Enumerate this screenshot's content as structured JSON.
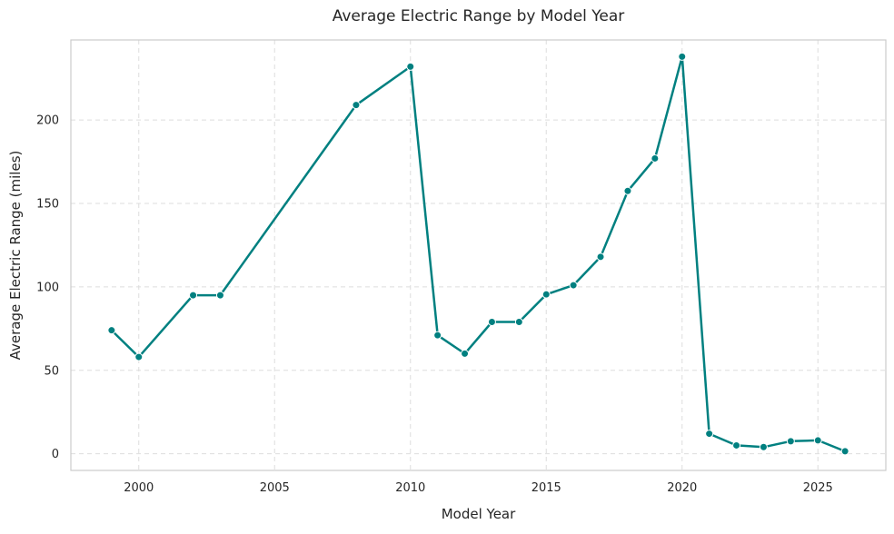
{
  "chart_data": {
    "type": "line",
    "title": "Average Electric Range by Model Year",
    "xlabel": "Model Year",
    "ylabel": "Average Electric Range (miles)",
    "xlim": [
      1997.5,
      2027.5
    ],
    "ylim": [
      -10,
      248
    ],
    "grid": true,
    "x_ticks": [
      2000,
      2005,
      2010,
      2015,
      2020,
      2025
    ],
    "y_ticks": [
      0,
      50,
      100,
      150,
      200
    ],
    "series": [
      {
        "color": "#008080",
        "x": [
          1999,
          2000,
          2002,
          2003,
          2008,
          2010,
          2011,
          2012,
          2013,
          2014,
          2015,
          2016,
          2017,
          2018,
          2019,
          2020,
          2021,
          2022,
          2023,
          2024,
          2025,
          2026
        ],
        "y": [
          74,
          58,
          95,
          95,
          209,
          232,
          71,
          60,
          79,
          79,
          95.5,
          101,
          118,
          157.5,
          177,
          238,
          12,
          5,
          4,
          7.5,
          8,
          1.5
        ]
      }
    ]
  }
}
